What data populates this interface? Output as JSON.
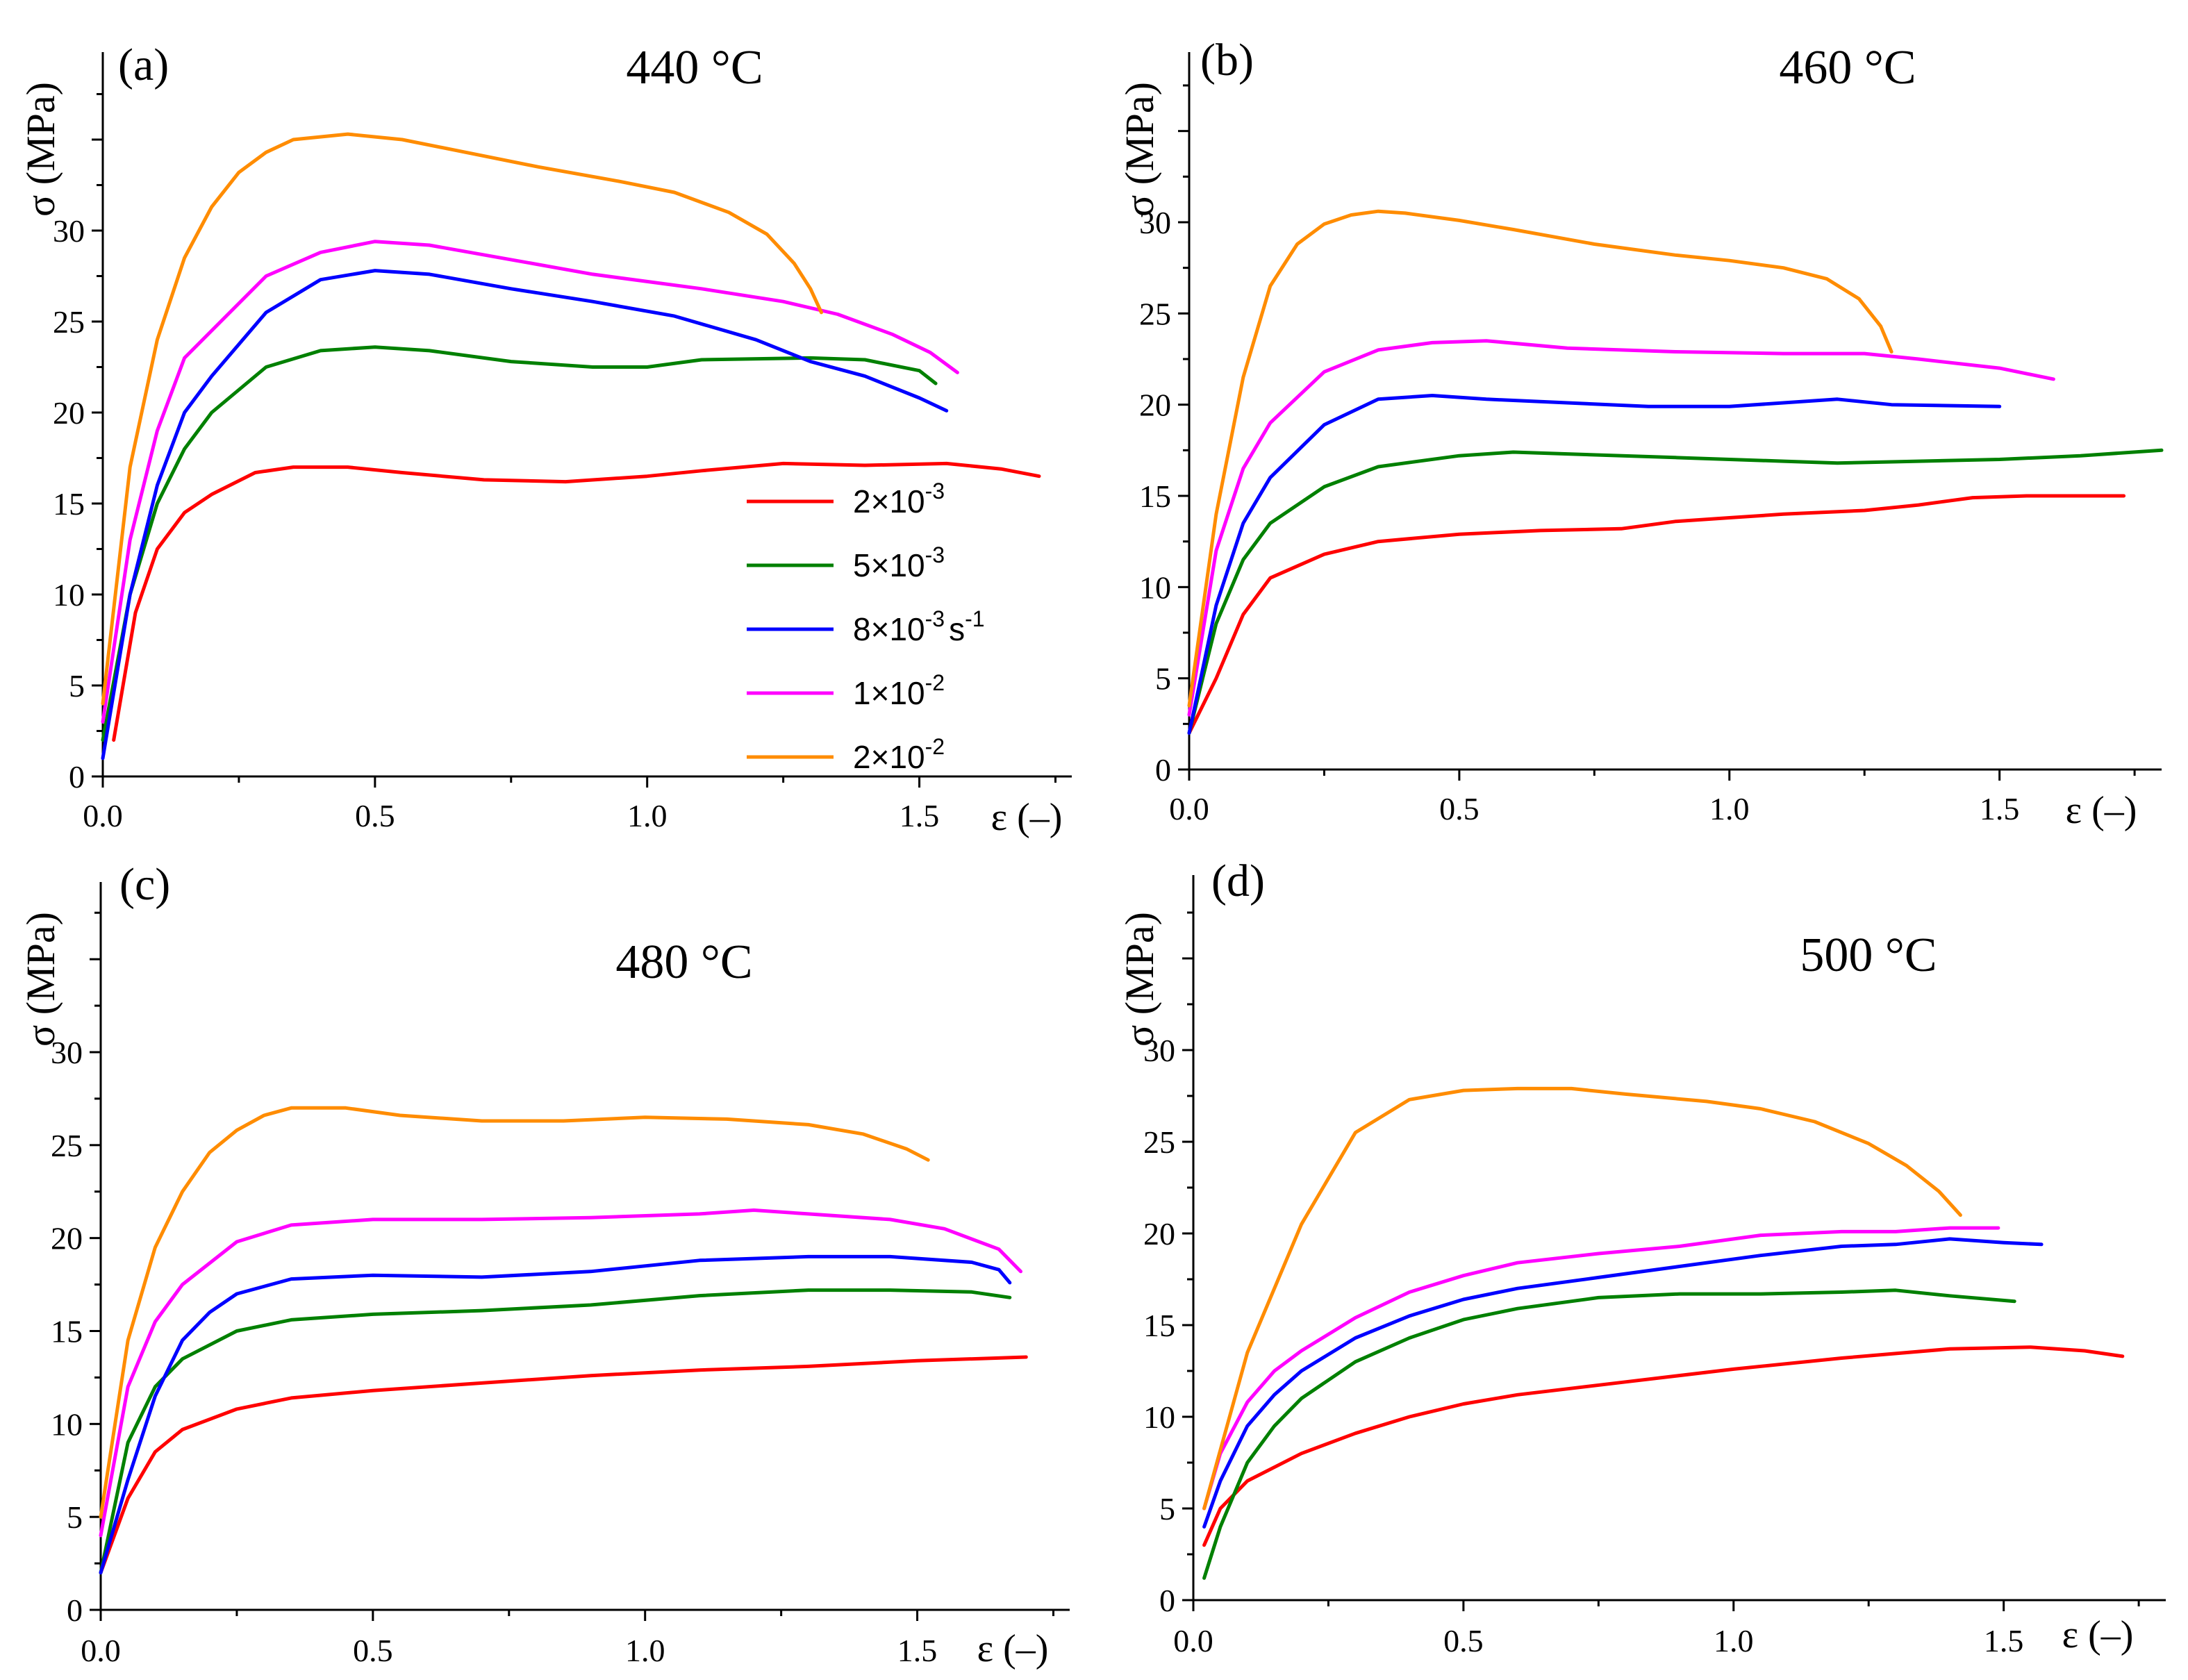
{
  "colors": {
    "2e-3": "#ff0000",
    "5e-3": "#008000",
    "8e-3": "#0000ff",
    "1e-2": "#ff00ff",
    "2e-2": "#ff8c00"
  },
  "legend": {
    "entries": [
      {
        "key": "2e-3",
        "mant": "2×10",
        "exp": "-3",
        "unit": ""
      },
      {
        "key": "5e-3",
        "mant": "5×10",
        "exp": "-3",
        "unit": ""
      },
      {
        "key": "8e-3",
        "mant": "8×10",
        "exp": "-3",
        "unit": "s",
        "unit_exp": "-1"
      },
      {
        "key": "1e-2",
        "mant": "1×10",
        "exp": "-2",
        "unit": ""
      },
      {
        "key": "2e-2",
        "mant": "2×10",
        "exp": "-2",
        "unit": ""
      }
    ]
  },
  "chart_data": [
    {
      "type": "line",
      "panel": "(a)",
      "title": "440 °C",
      "ylabel": "σ (MPa)",
      "xlabel": "ε (–)",
      "xlim": [
        0,
        1.78
      ],
      "ylim": [
        0,
        38
      ],
      "x_ticks": [
        "0.0",
        "0.5",
        "1.0",
        "1.5"
      ],
      "y_ticks": [
        "0",
        "5",
        "10",
        "15",
        "20",
        "25",
        "30"
      ],
      "series": [
        {
          "key": "2e-3",
          "x": [
            0.02,
            0.06,
            0.1,
            0.15,
            0.2,
            0.28,
            0.35,
            0.45,
            0.55,
            0.7,
            0.85,
            1.0,
            1.1,
            1.25,
            1.4,
            1.55,
            1.65,
            1.72
          ],
          "y": [
            2,
            9,
            12.5,
            14.5,
            15.5,
            16.7,
            17,
            17,
            16.7,
            16.3,
            16.2,
            16.5,
            16.8,
            17.2,
            17.1,
            17.2,
            16.9,
            16.5
          ]
        },
        {
          "key": "5e-3",
          "x": [
            0.0,
            0.05,
            0.1,
            0.15,
            0.2,
            0.3,
            0.4,
            0.5,
            0.6,
            0.75,
            0.9,
            1.0,
            1.1,
            1.3,
            1.4,
            1.5,
            1.53
          ],
          "y": [
            2,
            10,
            15,
            18,
            20,
            22.5,
            23.4,
            23.6,
            23.4,
            22.8,
            22.5,
            22.5,
            22.9,
            23,
            22.9,
            22.3,
            21.6
          ]
        },
        {
          "key": "8e-3",
          "x": [
            0.0,
            0.05,
            0.1,
            0.15,
            0.2,
            0.3,
            0.4,
            0.5,
            0.6,
            0.75,
            0.9,
            1.05,
            1.2,
            1.3,
            1.4,
            1.5,
            1.55
          ],
          "y": [
            1,
            10,
            16,
            20,
            22,
            25.5,
            27.3,
            27.8,
            27.6,
            26.8,
            26.1,
            25.3,
            24,
            22.8,
            22,
            20.8,
            20.1
          ]
        },
        {
          "key": "1e-2",
          "x": [
            0.0,
            0.05,
            0.1,
            0.15,
            0.2,
            0.3,
            0.4,
            0.5,
            0.6,
            0.75,
            0.9,
            1.0,
            1.1,
            1.25,
            1.35,
            1.45,
            1.52,
            1.57
          ],
          "y": [
            3,
            13,
            19,
            23,
            24.5,
            27.5,
            28.8,
            29.4,
            29.2,
            28.4,
            27.6,
            27.2,
            26.8,
            26.1,
            25.4,
            24.3,
            23.3,
            22.2
          ]
        },
        {
          "key": "2e-2",
          "x": [
            0.0,
            0.05,
            0.1,
            0.15,
            0.2,
            0.25,
            0.3,
            0.35,
            0.45,
            0.55,
            0.65,
            0.8,
            0.95,
            1.05,
            1.15,
            1.22,
            1.27,
            1.3,
            1.32
          ],
          "y": [
            4,
            17,
            24,
            28.5,
            31.3,
            33.2,
            34.3,
            35,
            35.3,
            35,
            34.4,
            33.5,
            32.7,
            32.1,
            31,
            29.8,
            28.2,
            26.8,
            25.5
          ]
        }
      ]
    },
    {
      "type": "line",
      "panel": "(b)",
      "title": "460 °C",
      "ylabel": "σ (MPa)",
      "xlabel": "ε (–)",
      "xlim": [
        0,
        1.8
      ],
      "ylim": [
        0,
        38
      ],
      "x_ticks": [
        "0.0",
        "0.5",
        "1.0",
        "1.5"
      ],
      "y_ticks": [
        "0",
        "5",
        "10",
        "15",
        "20",
        "25",
        "30"
      ],
      "series": [
        {
          "key": "2e-3",
          "x": [
            0.0,
            0.05,
            0.1,
            0.15,
            0.25,
            0.35,
            0.5,
            0.65,
            0.8,
            0.9,
            1.0,
            1.1,
            1.25,
            1.35,
            1.45,
            1.55,
            1.73
          ],
          "y": [
            2,
            5,
            8.5,
            10.5,
            11.8,
            12.5,
            12.9,
            13.1,
            13.2,
            13.6,
            13.8,
            14,
            14.2,
            14.5,
            14.9,
            15,
            15
          ]
        },
        {
          "key": "5e-3",
          "x": [
            0.0,
            0.05,
            0.1,
            0.15,
            0.25,
            0.35,
            0.5,
            0.6,
            0.7,
            0.9,
            1.1,
            1.2,
            1.35,
            1.5,
            1.65,
            1.8
          ],
          "y": [
            2,
            8,
            11.5,
            13.5,
            15.5,
            16.6,
            17.2,
            17.4,
            17.3,
            17.1,
            16.9,
            16.8,
            16.9,
            17,
            17.2,
            17.5
          ]
        },
        {
          "key": "8e-3",
          "x": [
            0.0,
            0.05,
            0.1,
            0.15,
            0.25,
            0.35,
            0.45,
            0.55,
            0.7,
            0.85,
            1.0,
            1.1,
            1.2,
            1.3,
            1.5
          ],
          "y": [
            2,
            9,
            13.5,
            16,
            18.9,
            20.3,
            20.5,
            20.3,
            20.1,
            19.9,
            19.9,
            20.1,
            20.3,
            20,
            19.9
          ]
        },
        {
          "key": "1e-2",
          "x": [
            0.0,
            0.05,
            0.1,
            0.15,
            0.25,
            0.35,
            0.45,
            0.55,
            0.7,
            0.9,
            1.1,
            1.25,
            1.35,
            1.5,
            1.6
          ],
          "y": [
            3,
            12,
            16.5,
            19,
            21.8,
            23,
            23.4,
            23.5,
            23.1,
            22.9,
            22.8,
            22.8,
            22.5,
            22,
            21.4
          ]
        },
        {
          "key": "2e-2",
          "x": [
            0.0,
            0.05,
            0.1,
            0.15,
            0.2,
            0.25,
            0.3,
            0.35,
            0.4,
            0.5,
            0.6,
            0.75,
            0.9,
            1.0,
            1.1,
            1.18,
            1.24,
            1.28,
            1.3
          ],
          "y": [
            3.5,
            14,
            21.5,
            26.5,
            28.8,
            29.9,
            30.4,
            30.6,
            30.5,
            30.1,
            29.6,
            28.8,
            28.2,
            27.9,
            27.5,
            26.9,
            25.8,
            24.3,
            22.9
          ]
        }
      ]
    },
    {
      "type": "line",
      "panel": "(c)",
      "title": "480 °C",
      "ylabel": "σ (MPa)",
      "xlabel": "ε (–)",
      "xlim": [
        0,
        1.78
      ],
      "ylim": [
        0,
        38
      ],
      "x_ticks": [
        "0.0",
        "0.5",
        "1.0",
        "1.5"
      ],
      "y_ticks": [
        "0",
        "5",
        "10",
        "15",
        "20",
        "25",
        "30"
      ],
      "series": [
        {
          "key": "2e-3",
          "x": [
            0.0,
            0.05,
            0.1,
            0.15,
            0.25,
            0.35,
            0.5,
            0.7,
            0.9,
            1.1,
            1.3,
            1.5,
            1.7
          ],
          "y": [
            2,
            6,
            8.5,
            9.7,
            10.8,
            11.4,
            11.8,
            12.2,
            12.6,
            12.9,
            13.1,
            13.4,
            13.6
          ]
        },
        {
          "key": "5e-3",
          "x": [
            0.0,
            0.05,
            0.1,
            0.15,
            0.25,
            0.35,
            0.5,
            0.7,
            0.9,
            1.1,
            1.3,
            1.45,
            1.6,
            1.67
          ],
          "y": [
            2,
            9,
            12,
            13.5,
            15,
            15.6,
            15.9,
            16.1,
            16.4,
            16.9,
            17.2,
            17.2,
            17.1,
            16.8
          ]
        },
        {
          "key": "8e-3",
          "x": [
            0.0,
            0.05,
            0.1,
            0.15,
            0.2,
            0.25,
            0.35,
            0.5,
            0.7,
            0.9,
            1.1,
            1.3,
            1.45,
            1.6,
            1.65,
            1.67
          ],
          "y": [
            2,
            7,
            11.5,
            14.5,
            16,
            17,
            17.8,
            18,
            17.9,
            18.2,
            18.8,
            19,
            19,
            18.7,
            18.3,
            17.6
          ]
        },
        {
          "key": "1e-2",
          "x": [
            0.0,
            0.05,
            0.1,
            0.15,
            0.25,
            0.35,
            0.5,
            0.7,
            0.9,
            1.1,
            1.2,
            1.3,
            1.45,
            1.55,
            1.65,
            1.69
          ],
          "y": [
            4,
            12,
            15.5,
            17.5,
            19.8,
            20.7,
            21,
            21,
            21.1,
            21.3,
            21.5,
            21.3,
            21,
            20.5,
            19.4,
            18.2
          ]
        },
        {
          "key": "2e-2",
          "x": [
            0.0,
            0.05,
            0.1,
            0.15,
            0.2,
            0.25,
            0.3,
            0.35,
            0.45,
            0.55,
            0.7,
            0.85,
            1.0,
            1.15,
            1.3,
            1.4,
            1.48,
            1.52
          ],
          "y": [
            5,
            14.5,
            19.5,
            22.5,
            24.6,
            25.8,
            26.6,
            27,
            27,
            26.6,
            26.3,
            26.3,
            26.5,
            26.4,
            26.1,
            25.6,
            24.8,
            24.2
          ]
        }
      ]
    },
    {
      "type": "line",
      "panel": "(d)",
      "title": "500 °C",
      "ylabel": "σ (MPa)",
      "xlabel": "ε (–)",
      "xlim": [
        0,
        1.8
      ],
      "ylim": [
        0,
        38
      ],
      "x_ticks": [
        "0.0",
        "0.5",
        "1.0",
        "1.5"
      ],
      "y_ticks": [
        "0",
        "5",
        "10",
        "15",
        "20",
        "25",
        "30"
      ],
      "series": [
        {
          "key": "2e-3",
          "x": [
            0.02,
            0.05,
            0.1,
            0.2,
            0.3,
            0.4,
            0.5,
            0.6,
            0.8,
            1.0,
            1.2,
            1.4,
            1.55,
            1.65,
            1.72
          ],
          "y": [
            3,
            5,
            6.5,
            8,
            9.1,
            10,
            10.7,
            11.2,
            11.9,
            12.6,
            13.2,
            13.7,
            13.8,
            13.6,
            13.3
          ]
        },
        {
          "key": "5e-3",
          "x": [
            0.02,
            0.05,
            0.1,
            0.15,
            0.2,
            0.3,
            0.4,
            0.5,
            0.6,
            0.75,
            0.9,
            1.05,
            1.2,
            1.3,
            1.4,
            1.52
          ],
          "y": [
            1.2,
            4,
            7.5,
            9.5,
            11,
            13,
            14.3,
            15.3,
            15.9,
            16.5,
            16.7,
            16.7,
            16.8,
            16.9,
            16.6,
            16.3
          ]
        },
        {
          "key": "8e-3",
          "x": [
            0.02,
            0.05,
            0.1,
            0.15,
            0.2,
            0.3,
            0.4,
            0.5,
            0.6,
            0.75,
            0.9,
            1.05,
            1.2,
            1.3,
            1.4,
            1.5,
            1.57
          ],
          "y": [
            4,
            6.5,
            9.5,
            11.2,
            12.5,
            14.3,
            15.5,
            16.4,
            17,
            17.6,
            18.2,
            18.8,
            19.3,
            19.4,
            19.7,
            19.5,
            19.4
          ]
        },
        {
          "key": "1e-2",
          "x": [
            0.02,
            0.05,
            0.1,
            0.15,
            0.2,
            0.3,
            0.4,
            0.5,
            0.6,
            0.75,
            0.9,
            1.05,
            1.2,
            1.3,
            1.4,
            1.49
          ],
          "y": [
            5,
            8,
            10.8,
            12.5,
            13.6,
            15.4,
            16.8,
            17.7,
            18.4,
            18.9,
            19.3,
            19.9,
            20.1,
            20.1,
            20.3,
            20.3
          ]
        },
        {
          "key": "2e-2",
          "x": [
            0.02,
            0.1,
            0.2,
            0.3,
            0.4,
            0.5,
            0.6,
            0.7,
            0.8,
            0.95,
            1.05,
            1.15,
            1.25,
            1.32,
            1.38,
            1.42
          ],
          "y": [
            5,
            13.5,
            20.5,
            25.5,
            27.3,
            27.8,
            27.9,
            27.9,
            27.6,
            27.2,
            26.8,
            26.1,
            24.9,
            23.7,
            22.3,
            21
          ]
        }
      ]
    }
  ]
}
